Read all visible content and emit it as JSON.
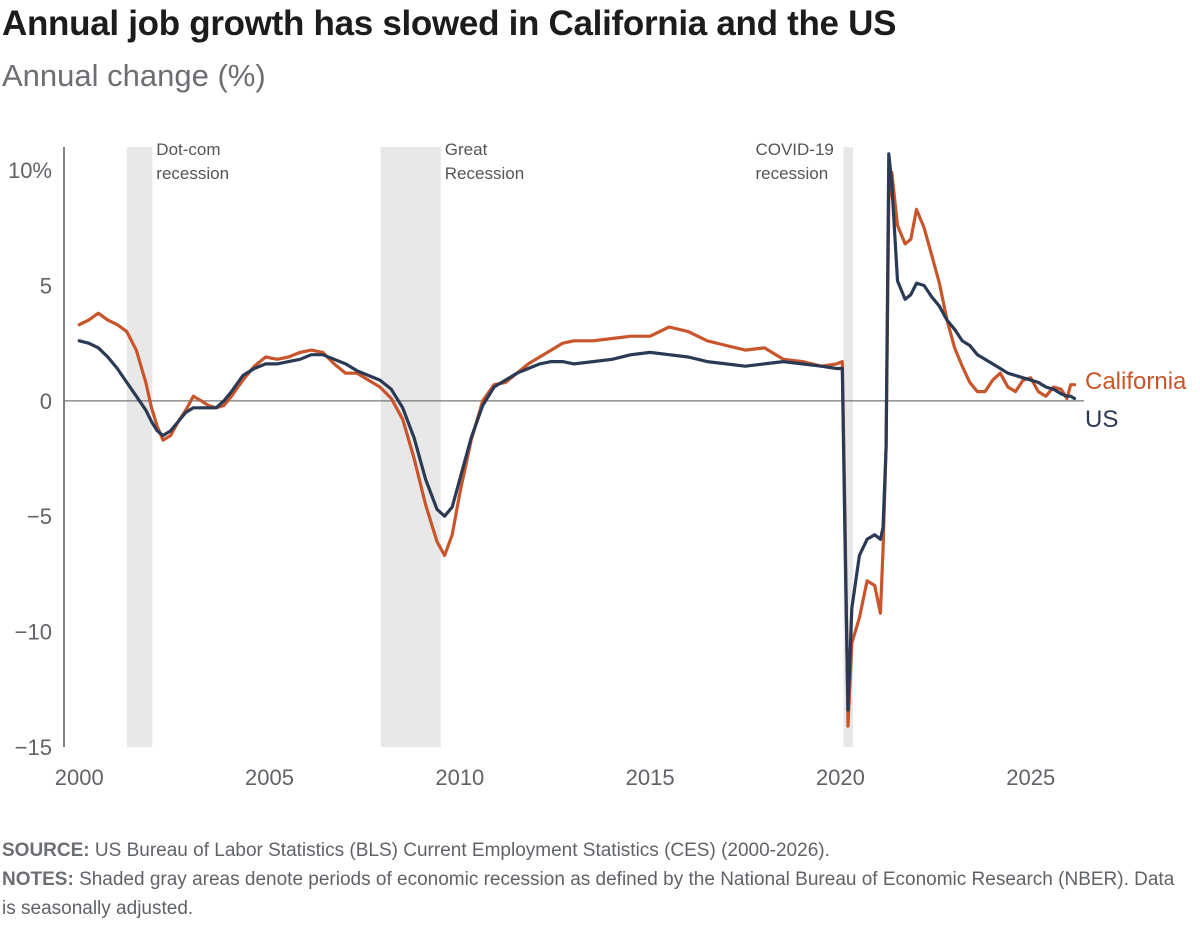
{
  "header": {
    "title": "Annual job growth has slowed in California and the US",
    "subtitle": "Annual change (%)"
  },
  "footer": {
    "source_label": "SOURCE:",
    "source_text": "US Bureau of Labor Statistics (BLS) Current Employment Statistics (CES) (2000-2026).",
    "notes_label": "NOTES:",
    "notes_text": "Shaded gray areas denote periods of economic recession as defined by the National Bureau of Economic Research (NBER). Data is seasonally adjusted."
  },
  "chart_data": {
    "type": "line",
    "title": "Annual job growth has slowed in California and the US",
    "ylabel": "Annual change (%)",
    "xlim": [
      1999.6,
      2026.4
    ],
    "ylim": [
      -15,
      11
    ],
    "x_ticks": [
      2000,
      2005,
      2010,
      2015,
      2020,
      2025
    ],
    "x_tick_labels": [
      "2000",
      "2005",
      "2010",
      "2015",
      "2020",
      "2025"
    ],
    "y_ticks": [
      10,
      5,
      0,
      -5,
      -10,
      -15
    ],
    "y_tick_labels": [
      "10%",
      "5",
      "0",
      "−5",
      "−10",
      "−15"
    ],
    "recessions": [
      {
        "start": 2001.25,
        "end": 2001.92,
        "label_lines": [
          "Dot-com",
          "recession"
        ]
      },
      {
        "start": 2007.92,
        "end": 2009.5,
        "label_lines": [
          "Great",
          "Recession"
        ]
      },
      {
        "start": 2020.08,
        "end": 2020.33,
        "label_lines": [
          "COVID-19",
          "recession"
        ]
      }
    ],
    "series": [
      {
        "name": "California",
        "color": "#c8552b",
        "points": [
          [
            2000.0,
            3.3
          ],
          [
            2000.25,
            3.5
          ],
          [
            2000.5,
            3.8
          ],
          [
            2000.75,
            3.5
          ],
          [
            2001.0,
            3.3
          ],
          [
            2001.25,
            3.0
          ],
          [
            2001.5,
            2.2
          ],
          [
            2001.75,
            0.8
          ],
          [
            2001.9,
            -0.3
          ],
          [
            2002.05,
            -1.1
          ],
          [
            2002.2,
            -1.7
          ],
          [
            2002.4,
            -1.5
          ],
          [
            2002.6,
            -0.9
          ],
          [
            2002.8,
            -0.4
          ],
          [
            2003.0,
            0.2
          ],
          [
            2003.2,
            0.0
          ],
          [
            2003.4,
            -0.2
          ],
          [
            2003.6,
            -0.3
          ],
          [
            2003.8,
            -0.2
          ],
          [
            2004.0,
            0.2
          ],
          [
            2004.3,
            0.9
          ],
          [
            2004.6,
            1.5
          ],
          [
            2004.9,
            1.9
          ],
          [
            2005.2,
            1.8
          ],
          [
            2005.5,
            1.9
          ],
          [
            2005.8,
            2.1
          ],
          [
            2006.1,
            2.2
          ],
          [
            2006.4,
            2.1
          ],
          [
            2006.7,
            1.6
          ],
          [
            2007.0,
            1.2
          ],
          [
            2007.3,
            1.2
          ],
          [
            2007.6,
            0.9
          ],
          [
            2007.9,
            0.6
          ],
          [
            2008.2,
            0.1
          ],
          [
            2008.5,
            -0.8
          ],
          [
            2008.8,
            -2.5
          ],
          [
            2009.1,
            -4.5
          ],
          [
            2009.4,
            -6.1
          ],
          [
            2009.6,
            -6.7
          ],
          [
            2009.8,
            -5.8
          ],
          [
            2010.0,
            -4.0
          ],
          [
            2010.3,
            -1.7
          ],
          [
            2010.6,
            0.0
          ],
          [
            2010.9,
            0.7
          ],
          [
            2011.2,
            0.8
          ],
          [
            2011.5,
            1.2
          ],
          [
            2011.8,
            1.6
          ],
          [
            2012.1,
            1.9
          ],
          [
            2012.4,
            2.2
          ],
          [
            2012.7,
            2.5
          ],
          [
            2013.0,
            2.6
          ],
          [
            2013.5,
            2.6
          ],
          [
            2014.0,
            2.7
          ],
          [
            2014.5,
            2.8
          ],
          [
            2015.0,
            2.8
          ],
          [
            2015.5,
            3.2
          ],
          [
            2016.0,
            3.0
          ],
          [
            2016.5,
            2.6
          ],
          [
            2017.0,
            2.4
          ],
          [
            2017.5,
            2.2
          ],
          [
            2018.0,
            2.3
          ],
          [
            2018.5,
            1.8
          ],
          [
            2019.0,
            1.7
          ],
          [
            2019.5,
            1.5
          ],
          [
            2019.9,
            1.6
          ],
          [
            2020.05,
            1.7
          ],
          [
            2020.12,
            -5.0
          ],
          [
            2020.2,
            -14.1
          ],
          [
            2020.3,
            -10.5
          ],
          [
            2020.5,
            -9.4
          ],
          [
            2020.7,
            -7.8
          ],
          [
            2020.9,
            -8.0
          ],
          [
            2021.05,
            -9.2
          ],
          [
            2021.12,
            -6.5
          ],
          [
            2021.2,
            -2.0
          ],
          [
            2021.27,
            8.7
          ],
          [
            2021.35,
            9.9
          ],
          [
            2021.5,
            7.6
          ],
          [
            2021.7,
            6.8
          ],
          [
            2021.85,
            7.0
          ],
          [
            2022.0,
            8.3
          ],
          [
            2022.2,
            7.5
          ],
          [
            2022.4,
            6.3
          ],
          [
            2022.6,
            5.1
          ],
          [
            2022.8,
            3.5
          ],
          [
            2023.0,
            2.3
          ],
          [
            2023.2,
            1.5
          ],
          [
            2023.4,
            0.8
          ],
          [
            2023.6,
            0.4
          ],
          [
            2023.8,
            0.4
          ],
          [
            2024.0,
            0.9
          ],
          [
            2024.2,
            1.2
          ],
          [
            2024.4,
            0.6
          ],
          [
            2024.6,
            0.4
          ],
          [
            2024.8,
            0.9
          ],
          [
            2025.0,
            1.0
          ],
          [
            2025.2,
            0.4
          ],
          [
            2025.4,
            0.2
          ],
          [
            2025.6,
            0.6
          ],
          [
            2025.8,
            0.5
          ],
          [
            2025.95,
            0.1
          ],
          [
            2026.05,
            0.7
          ],
          [
            2026.15,
            0.7
          ]
        ]
      },
      {
        "name": "US",
        "color": "#2a3a55",
        "points": [
          [
            2000.0,
            2.6
          ],
          [
            2000.25,
            2.5
          ],
          [
            2000.5,
            2.3
          ],
          [
            2000.75,
            1.9
          ],
          [
            2001.0,
            1.4
          ],
          [
            2001.25,
            0.8
          ],
          [
            2001.5,
            0.2
          ],
          [
            2001.75,
            -0.4
          ],
          [
            2001.9,
            -0.9
          ],
          [
            2002.05,
            -1.3
          ],
          [
            2002.2,
            -1.5
          ],
          [
            2002.4,
            -1.3
          ],
          [
            2002.6,
            -0.9
          ],
          [
            2002.8,
            -0.5
          ],
          [
            2003.0,
            -0.3
          ],
          [
            2003.2,
            -0.3
          ],
          [
            2003.4,
            -0.3
          ],
          [
            2003.6,
            -0.3
          ],
          [
            2003.8,
            0.0
          ],
          [
            2004.0,
            0.4
          ],
          [
            2004.3,
            1.1
          ],
          [
            2004.6,
            1.4
          ],
          [
            2004.9,
            1.6
          ],
          [
            2005.2,
            1.6
          ],
          [
            2005.5,
            1.7
          ],
          [
            2005.8,
            1.8
          ],
          [
            2006.1,
            2.0
          ],
          [
            2006.4,
            2.0
          ],
          [
            2006.7,
            1.8
          ],
          [
            2007.0,
            1.6
          ],
          [
            2007.3,
            1.3
          ],
          [
            2007.6,
            1.1
          ],
          [
            2007.9,
            0.9
          ],
          [
            2008.2,
            0.5
          ],
          [
            2008.5,
            -0.3
          ],
          [
            2008.8,
            -1.6
          ],
          [
            2009.1,
            -3.4
          ],
          [
            2009.4,
            -4.7
          ],
          [
            2009.6,
            -5.0
          ],
          [
            2009.8,
            -4.6
          ],
          [
            2010.0,
            -3.4
          ],
          [
            2010.3,
            -1.6
          ],
          [
            2010.6,
            -0.2
          ],
          [
            2010.9,
            0.6
          ],
          [
            2011.2,
            0.9
          ],
          [
            2011.5,
            1.2
          ],
          [
            2011.8,
            1.4
          ],
          [
            2012.1,
            1.6
          ],
          [
            2012.4,
            1.7
          ],
          [
            2012.7,
            1.7
          ],
          [
            2013.0,
            1.6
          ],
          [
            2013.5,
            1.7
          ],
          [
            2014.0,
            1.8
          ],
          [
            2014.5,
            2.0
          ],
          [
            2015.0,
            2.1
          ],
          [
            2015.5,
            2.0
          ],
          [
            2016.0,
            1.9
          ],
          [
            2016.5,
            1.7
          ],
          [
            2017.0,
            1.6
          ],
          [
            2017.5,
            1.5
          ],
          [
            2018.0,
            1.6
          ],
          [
            2018.5,
            1.7
          ],
          [
            2019.0,
            1.6
          ],
          [
            2019.5,
            1.5
          ],
          [
            2019.9,
            1.4
          ],
          [
            2020.05,
            1.4
          ],
          [
            2020.12,
            -6.0
          ],
          [
            2020.2,
            -13.4
          ],
          [
            2020.3,
            -9.0
          ],
          [
            2020.5,
            -6.7
          ],
          [
            2020.7,
            -6.0
          ],
          [
            2020.9,
            -5.8
          ],
          [
            2021.05,
            -6.0
          ],
          [
            2021.12,
            -5.5
          ],
          [
            2021.2,
            -2.0
          ],
          [
            2021.27,
            10.7
          ],
          [
            2021.35,
            9.4
          ],
          [
            2021.5,
            5.2
          ],
          [
            2021.7,
            4.4
          ],
          [
            2021.85,
            4.6
          ],
          [
            2022.0,
            5.1
          ],
          [
            2022.2,
            5.0
          ],
          [
            2022.4,
            4.5
          ],
          [
            2022.6,
            4.1
          ],
          [
            2022.8,
            3.5
          ],
          [
            2023.0,
            3.1
          ],
          [
            2023.2,
            2.6
          ],
          [
            2023.4,
            2.4
          ],
          [
            2023.6,
            2.0
          ],
          [
            2023.8,
            1.8
          ],
          [
            2024.0,
            1.6
          ],
          [
            2024.2,
            1.4
          ],
          [
            2024.4,
            1.2
          ],
          [
            2024.6,
            1.1
          ],
          [
            2024.8,
            1.0
          ],
          [
            2025.0,
            0.9
          ],
          [
            2025.2,
            0.8
          ],
          [
            2025.4,
            0.6
          ],
          [
            2025.6,
            0.5
          ],
          [
            2025.8,
            0.3
          ],
          [
            2025.95,
            0.2
          ],
          [
            2026.05,
            0.2
          ],
          [
            2026.15,
            0.1
          ]
        ]
      }
    ]
  }
}
